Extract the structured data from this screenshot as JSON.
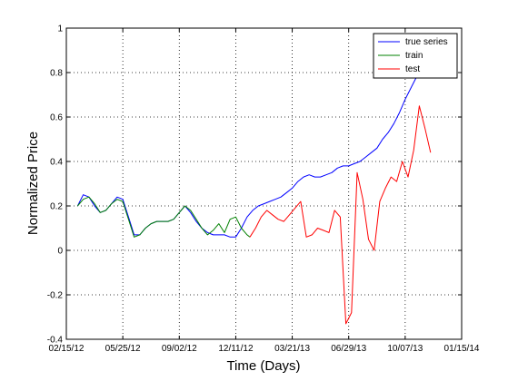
{
  "chart_data": {
    "type": "line",
    "xlabel": "Time (Days)",
    "ylabel": "Normalized Price",
    "xlim": [
      "02/15/12",
      "01/15/14"
    ],
    "ylim": [
      -0.4,
      1
    ],
    "grid": true,
    "legend_position": "top-right",
    "x_tick_labels": [
      "02/15/12",
      "05/25/12",
      "09/02/12",
      "12/11/12",
      "03/21/13",
      "06/29/13",
      "10/07/13",
      "01/15/14"
    ],
    "y_tick_labels": [
      "-0.4",
      "-0.2",
      "0",
      "0.2",
      "0.4",
      "0.6",
      "0.8",
      "1"
    ],
    "y_ticks": [
      -0.4,
      -0.2,
      0,
      0.2,
      0.4,
      0.6,
      0.8,
      1
    ],
    "series": [
      {
        "name": "true series",
        "color": "#0000ff",
        "x": [
          "03/06/12",
          "03/16/12",
          "03/26/12",
          "04/05/12",
          "04/15/12",
          "04/25/12",
          "05/05/12",
          "05/15/12",
          "05/25/12",
          "06/04/12",
          "06/14/12",
          "06/24/12",
          "07/04/12",
          "07/14/12",
          "07/24/12",
          "08/03/12",
          "08/13/12",
          "08/23/12",
          "09/02/12",
          "09/12/12",
          "09/22/12",
          "10/02/12",
          "10/12/12",
          "10/22/12",
          "11/01/12",
          "11/11/12",
          "11/21/12",
          "12/01/12",
          "12/11/12",
          "12/21/12",
          "12/31/12",
          "01/10/13",
          "01/20/13",
          "01/30/13",
          "02/09/13",
          "02/19/13",
          "03/01/13",
          "03/11/13",
          "03/21/13",
          "03/31/13",
          "04/10/13",
          "04/20/13",
          "04/30/13",
          "05/10/13",
          "05/20/13",
          "05/30/13",
          "06/09/13",
          "06/19/13",
          "06/29/13",
          "07/09/13",
          "07/19/13",
          "07/29/13",
          "08/08/13",
          "08/18/13",
          "08/28/13",
          "09/07/13",
          "09/17/13",
          "09/27/13",
          "10/07/13",
          "10/17/13",
          "10/27/13",
          "11/06/13",
          "11/16/13"
        ],
        "values": [
          0.2,
          0.25,
          0.24,
          0.2,
          0.17,
          0.18,
          0.21,
          0.24,
          0.23,
          0.15,
          0.07,
          0.07,
          0.1,
          0.12,
          0.13,
          0.13,
          0.13,
          0.14,
          0.17,
          0.2,
          0.17,
          0.13,
          0.1,
          0.08,
          0.07,
          0.07,
          0.07,
          0.06,
          0.06,
          0.1,
          0.15,
          0.18,
          0.2,
          0.21,
          0.22,
          0.23,
          0.24,
          0.26,
          0.28,
          0.31,
          0.33,
          0.34,
          0.33,
          0.33,
          0.34,
          0.35,
          0.37,
          0.38,
          0.38,
          0.39,
          0.4,
          0.42,
          0.44,
          0.46,
          0.5,
          0.53,
          0.57,
          0.62,
          0.68,
          0.73,
          0.78,
          0.85,
          0.92
        ]
      },
      {
        "name": "train",
        "color": "#008000",
        "x": [
          "03/06/12",
          "03/16/12",
          "03/26/12",
          "04/05/12",
          "04/15/12",
          "04/25/12",
          "05/05/12",
          "05/15/12",
          "05/25/12",
          "06/04/12",
          "06/14/12",
          "06/24/12",
          "07/04/12",
          "07/14/12",
          "07/24/12",
          "08/03/12",
          "08/13/12",
          "08/23/12",
          "09/02/12",
          "09/12/12",
          "09/22/12",
          "10/02/12",
          "10/12/12",
          "10/22/12",
          "11/01/12",
          "11/11/12",
          "11/21/12",
          "12/01/12",
          "12/11/12",
          "12/21/12",
          "12/31/12",
          "01/05/13"
        ],
        "values": [
          0.2,
          0.23,
          0.24,
          0.21,
          0.17,
          0.18,
          0.21,
          0.23,
          0.22,
          0.14,
          0.06,
          0.07,
          0.1,
          0.12,
          0.13,
          0.13,
          0.13,
          0.14,
          0.17,
          0.2,
          0.18,
          0.14,
          0.1,
          0.07,
          0.09,
          0.12,
          0.08,
          0.14,
          0.15,
          0.1,
          0.07,
          0.06
        ]
      },
      {
        "name": "test",
        "color": "#ff0000",
        "x": [
          "01/05/13",
          "01/15/13",
          "01/25/13",
          "02/04/13",
          "02/14/13",
          "02/24/13",
          "03/06/13",
          "03/16/13",
          "03/26/13",
          "04/05/13",
          "04/15/13",
          "04/25/13",
          "05/05/13",
          "05/15/13",
          "05/25/13",
          "06/04/13",
          "06/14/13",
          "06/24/13",
          "07/04/13",
          "07/14/13",
          "07/24/13",
          "08/03/13",
          "08/13/13",
          "08/23/13",
          "09/02/13",
          "09/12/13",
          "09/22/13",
          "10/02/13",
          "10/12/13",
          "10/22/13",
          "11/01/13",
          "11/11/13",
          "11/21/13"
        ],
        "values": [
          0.06,
          0.1,
          0.15,
          0.18,
          0.16,
          0.14,
          0.13,
          0.16,
          0.19,
          0.22,
          0.06,
          0.07,
          0.1,
          0.09,
          0.08,
          0.18,
          0.15,
          -0.33,
          -0.28,
          0.35,
          0.23,
          0.05,
          0.0,
          0.22,
          0.28,
          0.33,
          0.31,
          0.4,
          0.33,
          0.45,
          0.65,
          0.55,
          0.44
        ]
      }
    ]
  }
}
